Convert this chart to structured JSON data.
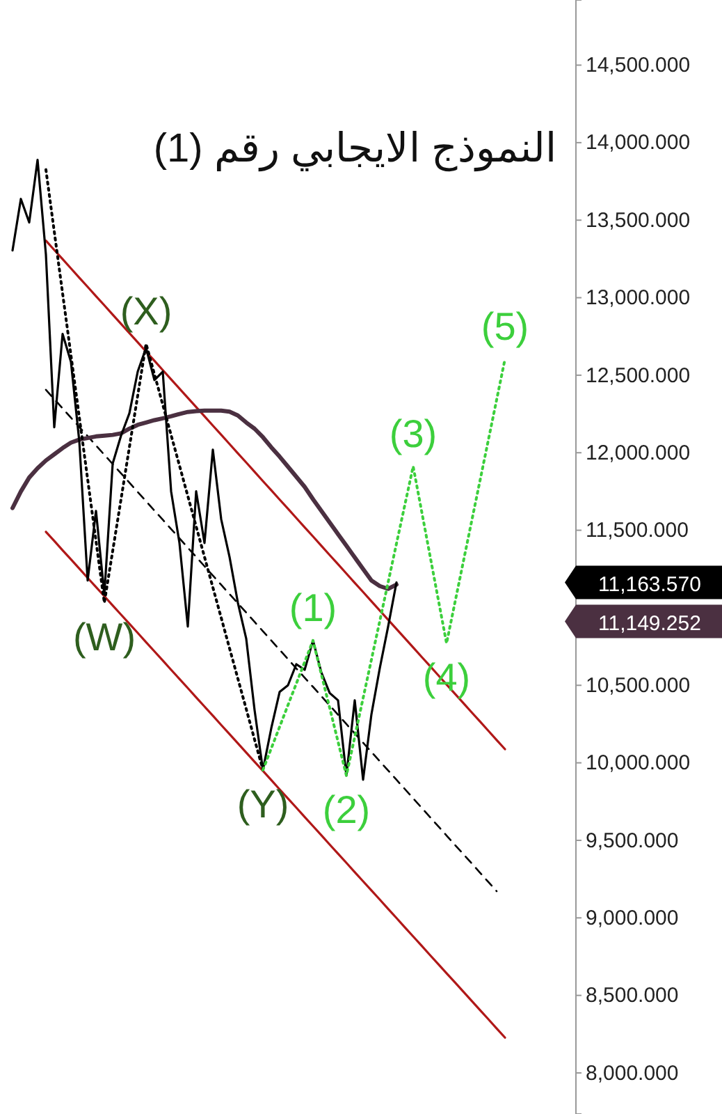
{
  "chart_data": {
    "type": "line",
    "title": "النموذج الايجابي رقم (1)",
    "ylim": [
      7735,
      14920
    ],
    "categories": [
      null,
      null,
      null,
      null,
      null,
      null,
      null,
      null,
      null,
      null,
      null,
      null,
      null,
      null,
      null,
      null,
      null,
      null,
      null,
      null,
      null,
      null,
      null,
      null,
      null,
      null,
      null,
      null,
      null,
      null,
      null,
      null,
      null,
      null,
      null,
      null,
      null,
      null,
      null,
      null,
      null,
      null,
      null,
      null,
      null,
      null,
      null,
      null,
      null,
      null,
      null,
      null,
      null,
      null,
      null,
      null,
      null,
      null,
      null,
      null,
      null,
      null,
      null,
      null,
      null,
      null,
      null,
      null,
      null
    ],
    "yticks": [
      {
        "value": 8000,
        "label": "8,000.000"
      },
      {
        "value": 8500,
        "label": "8,500.000"
      },
      {
        "value": 9000,
        "label": "9,000.000"
      },
      {
        "value": 9500,
        "label": "9,500.000"
      },
      {
        "value": 10000,
        "label": "10,000.000"
      },
      {
        "value": 10500,
        "label": "10,500.000"
      },
      {
        "value": 11500,
        "label": "11,500.000"
      },
      {
        "value": 12000,
        "label": "12,000.000"
      },
      {
        "value": 12500,
        "label": "12,500.000"
      },
      {
        "value": 13000,
        "label": "13,000.000"
      },
      {
        "value": 13500,
        "label": "13,500.000"
      },
      {
        "value": 14000,
        "label": "14,000.000"
      },
      {
        "value": 14500,
        "label": "14,500.000"
      }
    ],
    "tick_labels": "y",
    "marker": "none",
    "series": [
      {
        "color": "#b01818",
        "line_style": "solid",
        "values": [
          null,
          null,
          null,
          null,
          null,
          13368,
          13308,
          13249,
          13189,
          13129,
          13070,
          13010,
          12951,
          12891,
          12831,
          12772,
          12712,
          12652,
          12593,
          12533,
          12473,
          12414,
          12354,
          12295,
          12235,
          12175,
          12116,
          12056,
          11996,
          11937,
          11877,
          11817,
          11758,
          11698,
          11639,
          11579,
          11519,
          11460,
          11400,
          11340,
          11281,
          11221,
          11161,
          11102,
          11042,
          10982,
          10923,
          10863,
          10804,
          10744,
          10684,
          10625,
          10565,
          10505,
          10446,
          10386,
          10326,
          10267,
          10207,
          10147,
          10088,
          null,
          null,
          null,
          null,
          null,
          null,
          null,
          null
        ]
      },
      {
        "color": "#b01818",
        "line_style": "solid",
        "values": [
          null,
          null,
          null,
          null,
          null,
          11490,
          11431,
          11371,
          11312,
          11253,
          11193,
          11134,
          11075,
          11015,
          10956,
          10897,
          10838,
          10778,
          10719,
          10660,
          10600,
          10541,
          10482,
          10422,
          10363,
          10304,
          10244,
          10185,
          10126,
          10066,
          10007,
          9948,
          9889,
          9829,
          9770,
          9711,
          9651,
          9592,
          9533,
          9473,
          9414,
          9355,
          9295,
          9236,
          9177,
          9118,
          9058,
          8999,
          8939,
          8880,
          8821,
          8761,
          8702,
          8643,
          8584,
          8525,
          8465,
          8406,
          8347,
          8287,
          8228,
          null,
          null,
          null,
          null,
          null,
          null,
          null,
          null
        ]
      },
      {
        "color": "#000000",
        "line_style": "dashed",
        "values": [
          null,
          null,
          null,
          null,
          null,
          12406,
          12346,
          12286,
          12226,
          12166,
          12107,
          12047,
          11987,
          11927,
          11867,
          11807,
          11747,
          11687,
          11627,
          11568,
          11508,
          11448,
          11388,
          11328,
          11268,
          11208,
          11148,
          11088,
          11029,
          10969,
          10909,
          10849,
          10789,
          10729,
          10669,
          10609,
          10549,
          10490,
          10430,
          10370,
          10310,
          10250,
          10190,
          10130,
          10070,
          10010,
          9951,
          9891,
          9831,
          9771,
          9711,
          9651,
          9591,
          9531,
          9471,
          9412,
          9352,
          9292,
          9232,
          9172,
          null,
          null,
          null,
          null,
          null,
          null,
          null,
          null,
          null
        ]
      },
      {
        "color": "#4b3041",
        "line_style": "solid",
        "values": [
          null,
          11643,
          11750,
          11840,
          11900,
          11950,
          11990,
          12030,
          12065,
          12085,
          12095,
          12105,
          12110,
          12115,
          12125,
          12155,
          12180,
          12195,
          12210,
          12222,
          12235,
          12250,
          12263,
          12268,
          12272,
          12272,
          12272,
          12265,
          12240,
          12195,
          12155,
          12100,
          12035,
          11975,
          11910,
          11845,
          11780,
          11700,
          11625,
          11550,
          11475,
          11400,
          11325,
          11250,
          11176,
          11140,
          11122,
          11149.252,
          null,
          null,
          null,
          null,
          null,
          null,
          null,
          null,
          null,
          null,
          null,
          null,
          null,
          null,
          null,
          null,
          null,
          null,
          null,
          null,
          null
        ]
      },
      {
        "color": "#000000",
        "line_style": "solid",
        "values": [
          null,
          13305,
          13637,
          13485,
          13889,
          13278,
          12164,
          12766,
          12586,
          12074,
          11176,
          11625,
          11086,
          11930,
          12110,
          12254,
          12523,
          12676,
          12469,
          12523,
          11751,
          11418,
          10879,
          11751,
          11418,
          12020,
          11571,
          11328,
          11032,
          10800,
          10340,
          9954,
          10223,
          10457,
          10500,
          10636,
          10600,
          10789,
          10583,
          10450,
          10403,
          9918,
          10403,
          9891,
          10313,
          10610,
          10879,
          11163.57,
          null,
          null,
          null,
          null,
          null,
          null,
          null,
          null,
          null,
          null,
          null,
          null,
          null,
          null,
          null,
          null,
          null,
          null,
          null,
          null,
          null
        ]
      },
      {
        "color": "#000000",
        "line_style": "dotted",
        "values": [
          null,
          null,
          null,
          null,
          null,
          13826,
          13427,
          13028,
          12629,
          12230,
          11830,
          11431,
          11032,
          11366,
          11700,
          12035,
          12369,
          12703,
          12507,
          12310,
          12114,
          11918,
          11721,
          11525,
          11328,
          11132,
          10936,
          10739,
          10543,
          10347,
          10150,
          9954,
          null,
          null,
          null,
          null,
          null,
          null,
          null,
          null,
          null,
          null,
          null,
          null,
          null,
          null,
          null,
          null,
          null,
          null,
          null,
          null,
          null,
          null,
          null,
          null,
          null,
          null,
          null,
          null,
          null,
          null,
          null,
          null,
          null,
          null,
          null,
          null,
          null
        ]
      },
      {
        "color": "#3ccf3c",
        "line_style": "dotted",
        "values": [
          null,
          null,
          null,
          null,
          null,
          null,
          null,
          null,
          null,
          null,
          null,
          null,
          null,
          null,
          null,
          null,
          null,
          null,
          null,
          null,
          null,
          null,
          null,
          null,
          null,
          null,
          null,
          null,
          null,
          null,
          null,
          9954,
          10093,
          10232,
          10372,
          10511,
          10650,
          10789,
          10571,
          10354,
          10136,
          9918,
          10167,
          10417,
          10666,
          10915,
          11164,
          11414,
          11663,
          11912,
          11627,
          11341,
          11056,
          10771,
          11033,
          11295,
          11557,
          11818,
          12080,
          12342,
          12604,
          null,
          null,
          null,
          null,
          null,
          null,
          null,
          null
        ]
      }
    ],
    "annotations": [
      {
        "text": "(W)",
        "y": 11032
      },
      {
        "text": "(X)",
        "y": 12703
      },
      {
        "text": "(Y)",
        "y": 9954
      },
      {
        "text": "(1)",
        "y": 10789
      },
      {
        "text": "(2)",
        "y": 9918
      },
      {
        "text": "(3)",
        "y": 11912
      },
      {
        "text": "(4)",
        "y": 10771
      },
      {
        "text": "(5)",
        "y": 12604
      },
      "11,163.570",
      "11,149.252"
    ]
  }
}
